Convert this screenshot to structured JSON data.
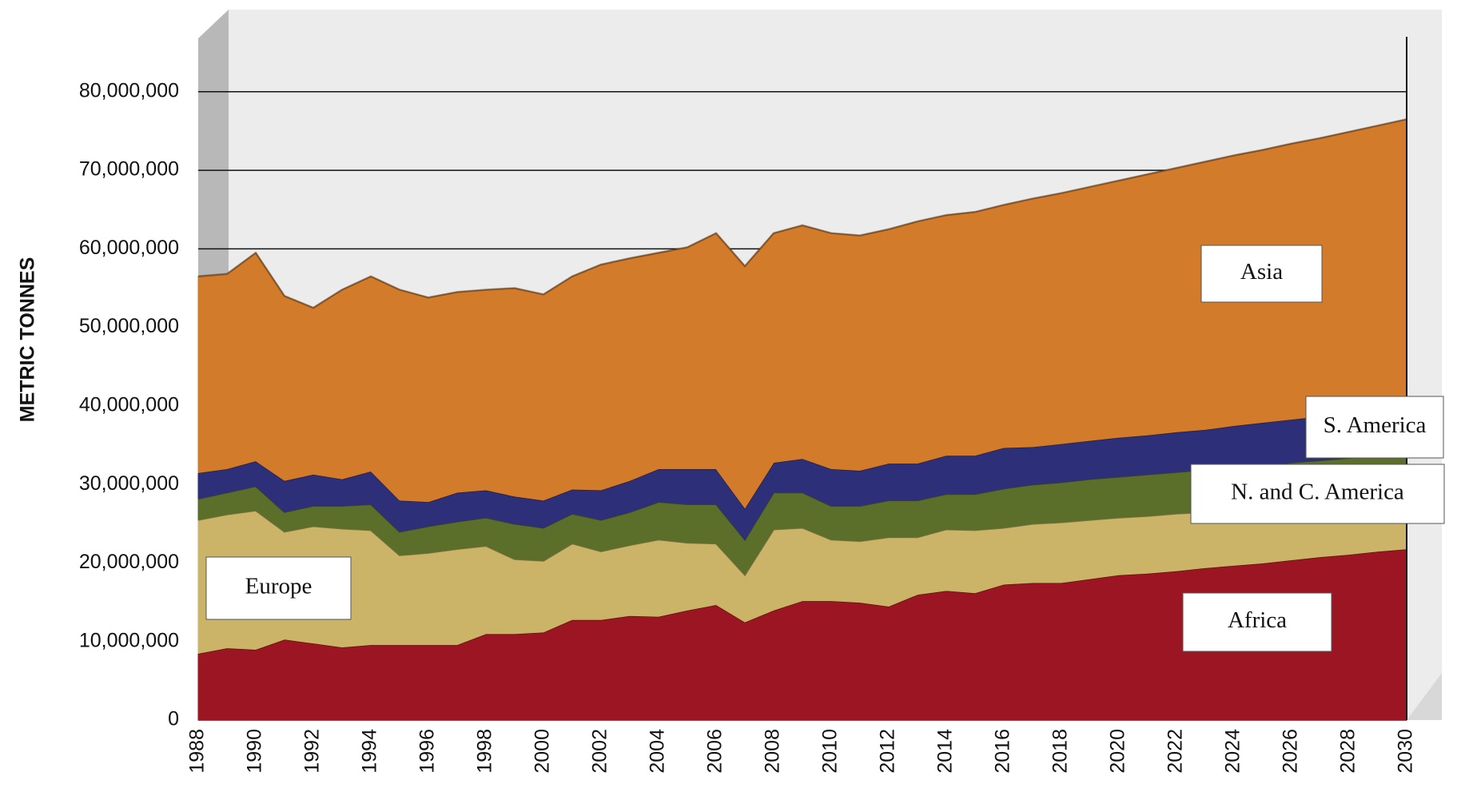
{
  "chart_data": {
    "type": "stacked-area",
    "y_axis_label": "METRIC TONNES",
    "x": [
      1988,
      1989,
      1990,
      1991,
      1992,
      1993,
      1994,
      1995,
      1996,
      1997,
      1998,
      1999,
      2000,
      2001,
      2002,
      2003,
      2004,
      2005,
      2006,
      2007,
      2008,
      2009,
      2010,
      2011,
      2012,
      2013,
      2014,
      2015,
      2016,
      2017,
      2018,
      2019,
      2020,
      2021,
      2022,
      2023,
      2024,
      2025,
      2026,
      2027,
      2028,
      2029,
      2030
    ],
    "xlim": [
      1988,
      2030
    ],
    "xticks": [
      1988,
      1990,
      1992,
      1994,
      1996,
      1998,
      2000,
      2002,
      2004,
      2006,
      2008,
      2010,
      2012,
      2014,
      2016,
      2018,
      2020,
      2022,
      2024,
      2026,
      2028,
      2030
    ],
    "ylim": [
      0,
      87000000
    ],
    "yticks": [
      0,
      {
        "value": 10000000,
        "label": "10,000,000"
      },
      {
        "value": 20000000,
        "label": "20,000,000"
      },
      {
        "value": 30000000,
        "label": "30,000,000"
      },
      {
        "value": 40000000,
        "label": "40,000,000"
      },
      {
        "value": 50000000,
        "label": "50,000,000"
      },
      {
        "value": 60000000,
        "label": "60,000,000"
      },
      {
        "value": 70000000,
        "label": "70,000,000"
      },
      {
        "value": 80000000,
        "label": "80,000,000"
      }
    ],
    "grid": true,
    "series": [
      {
        "name": "Africa",
        "color": "#9b1522",
        "values": [
          8500000,
          9200000,
          9000000,
          10300000,
          9800000,
          9300000,
          9600000,
          9600000,
          9600000,
          9600000,
          11000000,
          11000000,
          11200000,
          12800000,
          12800000,
          13300000,
          13200000,
          14000000,
          14700000,
          12500000,
          14000000,
          15200000,
          15200000,
          15000000,
          14500000,
          16000000,
          16500000,
          16200000,
          17300000,
          17500000,
          17500000,
          18000000,
          18500000,
          18700000,
          19000000,
          19400000,
          19700000,
          20000000,
          20400000,
          20800000,
          21100000,
          21500000,
          21800000
        ]
      },
      {
        "name": "Europe",
        "color": "#cbb467",
        "values": [
          17000000,
          17000000,
          17700000,
          13700000,
          14900000,
          15100000,
          14600000,
          11400000,
          11700000,
          12200000,
          11200000,
          9500000,
          9100000,
          9700000,
          8700000,
          9000000,
          9800000,
          8600000,
          7800000,
          6000000,
          10300000,
          9300000,
          7800000,
          7800000,
          8800000,
          7300000,
          7800000,
          8000000,
          7200000,
          7500000,
          7700000,
          7500000,
          7300000,
          7300000,
          7300000,
          7100000,
          7100000,
          7000000,
          6800000,
          6600000,
          6500000,
          6300000,
          6200000
        ]
      },
      {
        "name": "N. and C. America",
        "color": "#5b6f2b",
        "values": [
          2700000,
          2800000,
          3100000,
          2500000,
          2600000,
          2900000,
          3300000,
          3000000,
          3400000,
          3500000,
          3600000,
          4500000,
          4200000,
          3800000,
          4000000,
          4200000,
          4800000,
          4900000,
          5000000,
          4500000,
          4700000,
          4500000,
          4300000,
          4500000,
          4700000,
          4700000,
          4500000,
          4600000,
          5000000,
          5000000,
          5100000,
          5200000,
          5200000,
          5300000,
          5300000,
          5400000,
          5400000,
          5500000,
          5600000,
          5700000,
          5800000,
          5900000,
          6000000
        ]
      },
      {
        "name": "S. America",
        "color": "#2e2f79",
        "values": [
          3300000,
          3000000,
          3200000,
          4000000,
          4000000,
          3400000,
          4200000,
          4000000,
          3100000,
          3700000,
          3500000,
          3500000,
          3500000,
          3100000,
          3800000,
          4000000,
          4200000,
          4500000,
          4500000,
          4000000,
          3800000,
          4300000,
          4700000,
          4500000,
          4700000,
          4700000,
          4900000,
          4900000,
          5200000,
          4800000,
          4900000,
          4900000,
          5000000,
          5000000,
          5100000,
          5100000,
          5300000,
          5400000,
          5500000,
          5600000,
          5700000,
          5700000,
          5800000
        ]
      },
      {
        "name": "Asia",
        "color": "#d17b2b",
        "values": [
          25000000,
          24800000,
          26500000,
          23500000,
          21200000,
          24100000,
          24800000,
          26800000,
          26000000,
          25500000,
          25500000,
          26500000,
          26200000,
          27100000,
          28700000,
          28300000,
          27500000,
          28200000,
          30000000,
          30800000,
          29200000,
          29700000,
          30000000,
          29900000,
          29800000,
          30800000,
          30600000,
          31000000,
          30900000,
          31600000,
          31900000,
          32300000,
          32700000,
          33200000,
          33600000,
          34100000,
          34400000,
          34700000,
          35100000,
          35400000,
          35800000,
          36300000,
          36700000
        ]
      }
    ]
  }
}
